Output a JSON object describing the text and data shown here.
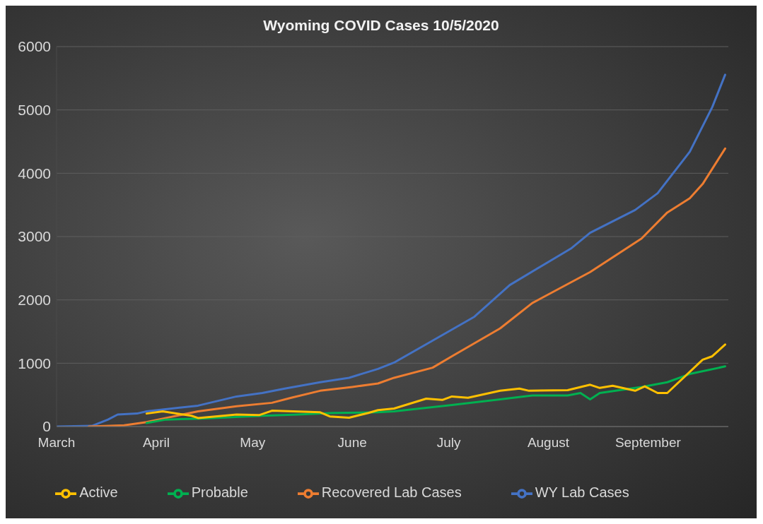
{
  "chart_data": {
    "type": "line",
    "title": "Wyoming COVID Cases 10/5/2020",
    "xlim": [
      "--03-01",
      "--09-26"
    ],
    "xticks": [
      {
        "value": "--03-01",
        "label": "March"
      },
      {
        "value": "--04-01",
        "label": "April"
      },
      {
        "value": "--05-01",
        "label": "May"
      },
      {
        "value": "--06-01",
        "label": "June"
      },
      {
        "value": "--07-01",
        "label": "July"
      },
      {
        "value": "--08-01",
        "label": "August"
      },
      {
        "value": "--09-01",
        "label": "September"
      }
    ],
    "ylim": [
      0,
      6000
    ],
    "yticks": [
      0,
      1000,
      2000,
      3000,
      4000,
      5000,
      6000
    ],
    "grid": "y",
    "legend": "bottom",
    "marker": "none",
    "line_style": "solid",
    "series": [
      {
        "name": "WY Lab Cases",
        "color": "#4472c4",
        "x": [
          "--03-01",
          "--03-12",
          "--03-17",
          "--03-20",
          "--03-26",
          "--03-29",
          "--04-14",
          "--04-26",
          "--05-04",
          "--05-11",
          "--05-22",
          "--05-31",
          "--06-09",
          "--06-14",
          "--06-24",
          "--07-09",
          "--07-20",
          "--08-08",
          "--08-14",
          "--08-28",
          "--09-04",
          "--09-14",
          "--09-21",
          "--09-25"
        ],
        "values": [
          0,
          10,
          110,
          190,
          205,
          240,
          330,
          475,
          530,
          600,
          700,
          770,
          910,
          1010,
          1300,
          1735,
          2235,
          2810,
          3060,
          3420,
          3685,
          4340,
          5045,
          5555
        ]
      },
      {
        "name": "Recovered Lab Cases",
        "color": "#ed7d31",
        "x": [
          "--03-11",
          "--03-22",
          "--03-29",
          "--04-04",
          "--04-14",
          "--04-26",
          "--05-07",
          "--05-13",
          "--05-22",
          "--06-01",
          "--06-09",
          "--06-14",
          "--06-26",
          "--07-02",
          "--07-17",
          "--07-27",
          "--08-14",
          "--08-30",
          "--09-07",
          "--09-14",
          "--09-18",
          "--09-25"
        ],
        "values": [
          0,
          20,
          70,
          135,
          240,
          320,
          375,
          455,
          565,
          625,
          680,
          770,
          930,
          1110,
          1550,
          1950,
          2440,
          2970,
          3380,
          3605,
          3830,
          4390
        ]
      },
      {
        "name": "Probable",
        "color": "#00b050",
        "x": [
          "--03-29",
          "--04-04",
          "--04-15",
          "--05-04",
          "--05-15",
          "--05-26",
          "--06-09",
          "--06-14",
          "--07-02",
          "--07-17",
          "--07-27",
          "--08-07",
          "--08-11",
          "--08-14",
          "--08-17",
          "--08-30",
          "--09-07",
          "--09-14",
          "--09-25"
        ],
        "values": [
          55,
          110,
          125,
          170,
          190,
          215,
          225,
          240,
          340,
          430,
          490,
          490,
          530,
          430,
          530,
          625,
          700,
          830,
          950
        ]
      },
      {
        "name": "Active",
        "color": "#ffc000",
        "x": [
          "--03-29",
          "--04-03",
          "--04-12",
          "--04-14",
          "--04-26",
          "--05-03",
          "--05-07",
          "--05-22",
          "--05-25",
          "--05-31",
          "--06-06",
          "--06-09",
          "--06-14",
          "--06-24",
          "--06-29",
          "--07-02",
          "--07-07",
          "--07-17",
          "--07-23",
          "--07-26",
          "--08-07",
          "--08-14",
          "--08-17",
          "--08-21",
          "--08-28",
          "--08-31",
          "--09-04",
          "--09-07",
          "--09-18",
          "--09-21",
          "--09-25"
        ],
        "values": [
          205,
          240,
          170,
          135,
          190,
          180,
          250,
          225,
          160,
          140,
          215,
          260,
          285,
          440,
          420,
          475,
          455,
          565,
          600,
          565,
          575,
          660,
          610,
          645,
          565,
          635,
          530,
          530,
          1055,
          1110,
          1295
        ]
      }
    ]
  }
}
